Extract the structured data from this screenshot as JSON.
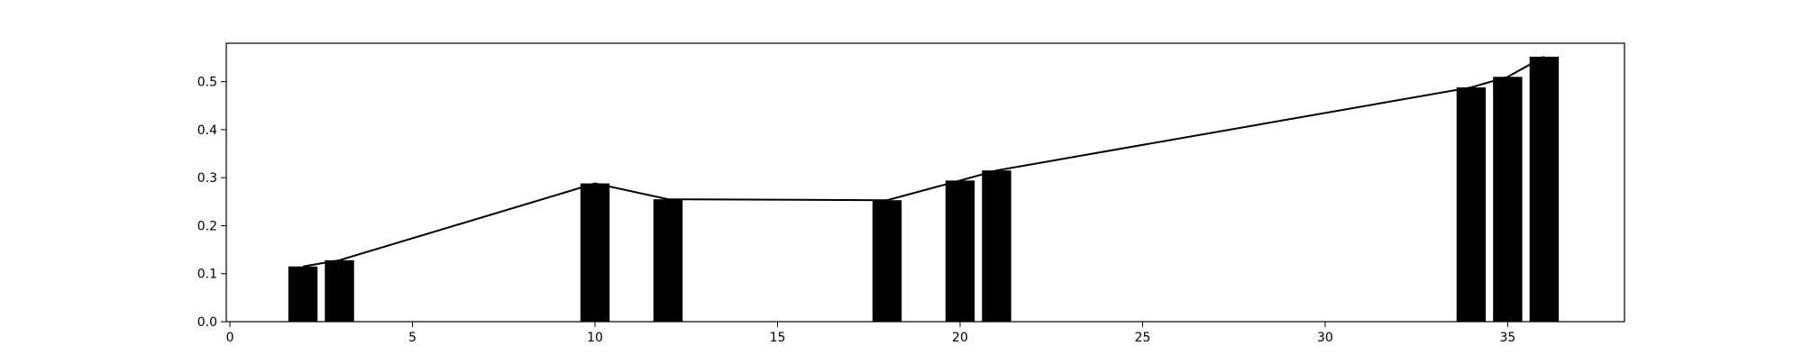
{
  "chart_data": {
    "type": "bar",
    "x": [
      2,
      3,
      10,
      12,
      18,
      20,
      21,
      34,
      35,
      36
    ],
    "values": [
      0.115,
      0.128,
      0.288,
      0.255,
      0.253,
      0.294,
      0.315,
      0.488,
      0.51,
      0.552
    ],
    "line": {
      "x": [
        2,
        3,
        10,
        12,
        18,
        20,
        21,
        34,
        35,
        36
      ],
      "y": [
        0.115,
        0.128,
        0.288,
        0.255,
        0.253,
        0.294,
        0.315,
        0.488,
        0.51,
        0.552
      ]
    },
    "xlim": [
      -0.1,
      38.2
    ],
    "ylim": [
      0,
      0.58
    ],
    "x_ticks": [
      0,
      5,
      10,
      15,
      20,
      25,
      30,
      35
    ],
    "y_ticks": [
      0.0,
      0.1,
      0.2,
      0.3,
      0.4,
      0.5
    ],
    "x_tick_labels": [
      "0",
      "5",
      "10",
      "15",
      "20",
      "25",
      "30",
      "35"
    ],
    "y_tick_labels": [
      "0.0",
      "0.1",
      "0.2",
      "0.3",
      "0.4",
      "0.5"
    ],
    "title": "",
    "xlabel": "",
    "ylabel": "",
    "grid": false,
    "bar_color": "#000000",
    "line_color": "#000000"
  }
}
